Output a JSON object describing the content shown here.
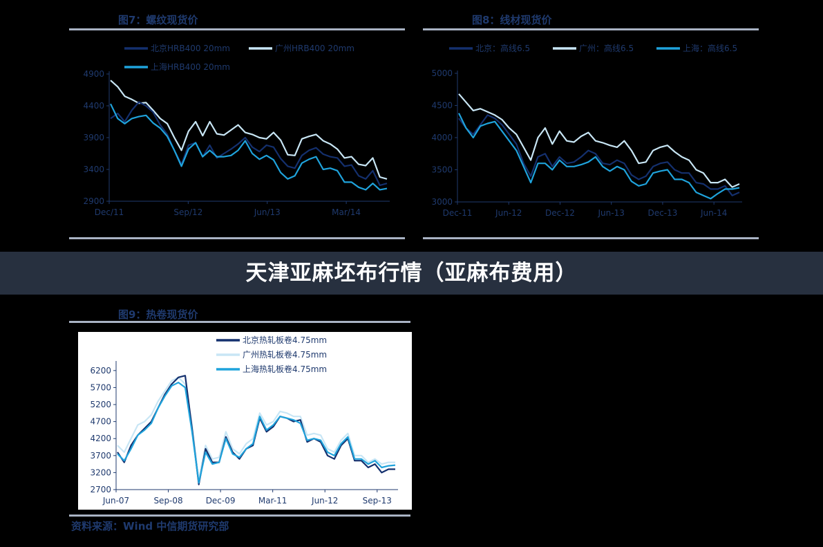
{
  "banner": "天津亚麻坯布行情（亚麻布费用）",
  "source": "资料来源：Wind  中信期货研究部",
  "colors": {
    "dark": "#14306e",
    "light": "#c8e6f5",
    "mid": "#1fa3dc",
    "axis": "#1f3a6e"
  },
  "chart_data": [
    {
      "type": "line",
      "title": "图7：螺纹现货价",
      "x_ticks": [
        "Dec/11",
        "Sep/12",
        "Jun/13",
        "Mar/14"
      ],
      "y_ticks": [
        2900,
        3400,
        3900,
        4400,
        4900
      ],
      "ylim": [
        2900,
        4900
      ],
      "legend": "top",
      "grid": false,
      "series": [
        {
          "name": "北京HRB400 20mm",
          "color": "#14306e",
          "values": [
            4200,
            4280,
            4150,
            4330,
            4460,
            4400,
            4300,
            4100,
            3950,
            3700,
            3480,
            3780,
            3820,
            3600,
            3780,
            3580,
            3650,
            3720,
            3800,
            3900,
            3750,
            3680,
            3780,
            3750,
            3570,
            3450,
            3420,
            3620,
            3700,
            3740,
            3640,
            3600,
            3580,
            3450,
            3470,
            3300,
            3250,
            3380,
            3150,
            3180
          ]
        },
        {
          "name": "广州HRB400 20mm",
          "color": "#c8e6f5",
          "values": [
            4800,
            4700,
            4550,
            4500,
            4440,
            4450,
            4330,
            4200,
            4120,
            3900,
            3700,
            4000,
            4150,
            3930,
            4150,
            3960,
            3940,
            4020,
            4100,
            3980,
            3950,
            3900,
            3880,
            3980,
            3860,
            3630,
            3620,
            3880,
            3920,
            3950,
            3850,
            3800,
            3720,
            3580,
            3600,
            3480,
            3460,
            3580,
            3280,
            3250
          ]
        },
        {
          "name": "上海HRB400 20mm",
          "color": "#1fa3dc",
          "values": [
            4430,
            4200,
            4120,
            4200,
            4230,
            4250,
            4130,
            4050,
            3920,
            3700,
            3450,
            3720,
            3820,
            3600,
            3700,
            3600,
            3600,
            3620,
            3700,
            3850,
            3650,
            3560,
            3620,
            3550,
            3350,
            3250,
            3300,
            3500,
            3560,
            3600,
            3400,
            3420,
            3380,
            3200,
            3200,
            3120,
            3080,
            3180,
            3080,
            3100
          ]
        }
      ]
    },
    {
      "type": "line",
      "title": "图8：线材现货价",
      "x_ticks": [
        "Dec-11",
        "Jun-12",
        "Dec-12",
        "Jun-13",
        "Dec-13",
        "Jun-14"
      ],
      "y_ticks": [
        3000,
        3500,
        4000,
        4500,
        5000
      ],
      "ylim": [
        3000,
        5000
      ],
      "legend": "top",
      "grid": false,
      "series": [
        {
          "name": "北京：高线6.5",
          "color": "#14306e",
          "values": [
            4300,
            4150,
            4050,
            4200,
            4350,
            4300,
            4200,
            4050,
            3900,
            3600,
            3400,
            3700,
            3750,
            3550,
            3700,
            3600,
            3620,
            3700,
            3800,
            3750,
            3600,
            3580,
            3650,
            3600,
            3420,
            3350,
            3400,
            3550,
            3600,
            3620,
            3500,
            3450,
            3450,
            3300,
            3280,
            3200,
            3200,
            3250,
            3100,
            3150
          ]
        },
        {
          "name": "广州：高线6.5",
          "color": "#c8e6f5",
          "values": [
            4680,
            4550,
            4420,
            4450,
            4400,
            4350,
            4280,
            4150,
            4050,
            3850,
            3650,
            4000,
            4150,
            3900,
            4100,
            3950,
            3930,
            4020,
            4080,
            3950,
            3920,
            3880,
            3850,
            3950,
            3800,
            3600,
            3620,
            3800,
            3850,
            3880,
            3780,
            3700,
            3650,
            3500,
            3450,
            3300,
            3300,
            3350,
            3230,
            3280
          ]
        },
        {
          "name": "上海：高线6.5",
          "color": "#1fa3dc",
          "values": [
            4380,
            4150,
            4000,
            4180,
            4220,
            4250,
            4100,
            3950,
            3800,
            3550,
            3300,
            3600,
            3600,
            3500,
            3650,
            3550,
            3550,
            3580,
            3620,
            3700,
            3550,
            3480,
            3550,
            3500,
            3320,
            3250,
            3280,
            3450,
            3480,
            3500,
            3350,
            3350,
            3300,
            3150,
            3100,
            3050,
            3130,
            3200,
            3200,
            3220
          ]
        }
      ]
    },
    {
      "type": "line",
      "title": "图9：热卷现货价",
      "x_ticks": [
        "Jun-07",
        "Sep-08",
        "Dec-09",
        "Mar-11",
        "Jun-12",
        "Sep-13"
      ],
      "y_ticks": [
        2700,
        3200,
        3700,
        4200,
        4700,
        5200,
        5700,
        6200
      ],
      "ylim": [
        2700,
        6400
      ],
      "legend": "top",
      "grid": false,
      "series": [
        {
          "name": "北京热轧板卷4.75mm",
          "color": "#14306e",
          "values": [
            3800,
            3500,
            4000,
            4300,
            4500,
            4700,
            5100,
            5500,
            5800,
            6000,
            6050,
            4500,
            2850,
            3900,
            3500,
            3500,
            4250,
            3800,
            3600,
            3900,
            4000,
            4800,
            4400,
            4550,
            4850,
            4800,
            4700,
            4750,
            4100,
            4200,
            4100,
            3700,
            3600,
            4000,
            4200,
            3550,
            3550,
            3350,
            3450,
            3200,
            3300,
            3300
          ]
        },
        {
          "name": "广州热轧板卷4.75mm",
          "color": "#c8e6f5",
          "values": [
            4000,
            3800,
            4200,
            4600,
            4700,
            4900,
            5300,
            5600,
            5900,
            6000,
            5800,
            4600,
            3000,
            4000,
            3600,
            3650,
            4400,
            3900,
            3750,
            4050,
            4200,
            4950,
            4600,
            4700,
            5000,
            4950,
            4850,
            4850,
            4300,
            4350,
            4300,
            3900,
            3800,
            4150,
            4350,
            3700,
            3700,
            3500,
            3600,
            3450,
            3500,
            3500
          ]
        },
        {
          "name": "上海热轧板卷4.75mm",
          "color": "#1fa3dc",
          "values": [
            3750,
            3550,
            3900,
            4300,
            4450,
            4650,
            5100,
            5450,
            5750,
            5850,
            5700,
            4400,
            2900,
            3800,
            3450,
            3500,
            4200,
            3750,
            3650,
            3900,
            4050,
            4850,
            4450,
            4600,
            4850,
            4800,
            4750,
            4650,
            4150,
            4200,
            4150,
            3800,
            3700,
            4050,
            4250,
            3600,
            3600,
            3450,
            3550,
            3350,
            3400,
            3420
          ]
        }
      ]
    }
  ]
}
